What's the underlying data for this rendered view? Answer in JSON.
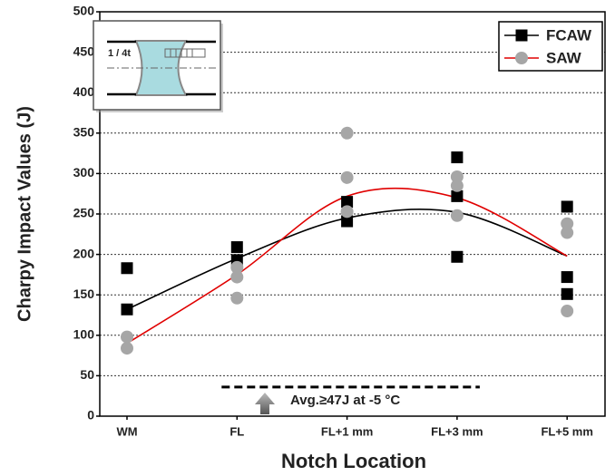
{
  "chart_data": {
    "type": "scatter",
    "y_label": "Charpy Impact Values (J)",
    "x_label": "Notch Location",
    "categories": [
      "WM",
      "FL",
      "FL+1 mm",
      "FL+3 mm",
      "FL+5 mm"
    ],
    "ylim": [
      0,
      500
    ],
    "yticks": [
      0,
      50,
      100,
      150,
      200,
      250,
      300,
      350,
      400,
      450,
      500
    ],
    "grid": true,
    "legend": "top-right",
    "series": [
      {
        "name": "FCAW",
        "color": "#000000",
        "marker": "square",
        "line_color": "#000000",
        "x": [
          "WM",
          "WM",
          "FL",
          "FL",
          "FL+1 mm",
          "FL+1 mm",
          "FL+3 mm",
          "FL+3 mm",
          "FL+3 mm",
          "FL+5 mm",
          "FL+5 mm",
          "FL+5 mm"
        ],
        "values": [
          183,
          132,
          209,
          193,
          265,
          241,
          320,
          272,
          197,
          259,
          172,
          151
        ],
        "fit": [
          132,
          195,
          245,
          252,
          198
        ]
      },
      {
        "name": "SAW",
        "color": "#a6a6a6",
        "marker": "circle",
        "line_color": "#e00000",
        "x": [
          "WM",
          "WM",
          "FL",
          "FL",
          "FL",
          "FL+1 mm",
          "FL+1 mm",
          "FL+1 mm",
          "FL+3 mm",
          "FL+3 mm",
          "FL+3 mm",
          "FL+5 mm",
          "FL+5 mm",
          "FL+5 mm"
        ],
        "values": [
          98,
          84,
          184,
          172,
          146,
          350,
          295,
          253,
          296,
          285,
          248,
          238,
          227,
          130
        ],
        "fit": [
          90,
          175,
          272,
          270,
          198
        ]
      }
    ],
    "threshold_line": 36,
    "annotation": "Avg.≥47J at -5 °C",
    "inset_label": "1 / 4t"
  }
}
